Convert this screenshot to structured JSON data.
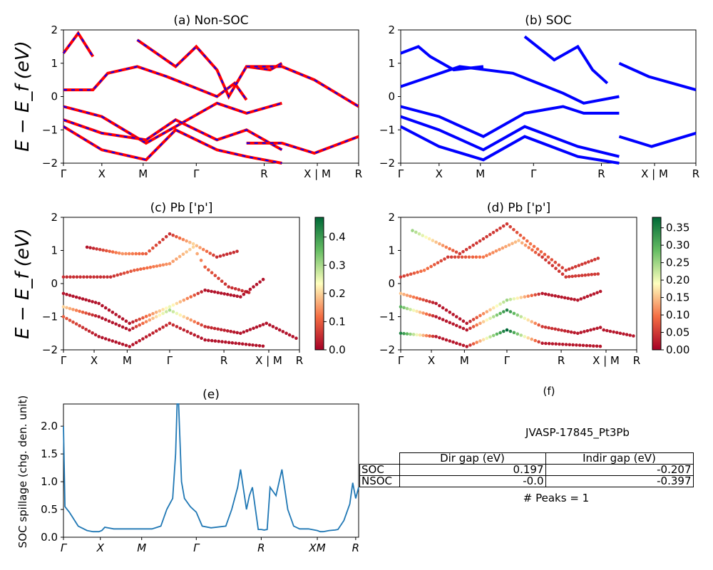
{
  "chart_data": [
    {
      "id": "a",
      "type": "line",
      "title": "(a) Non-SOC",
      "ylabel": "E − E_f (eV)",
      "ylim": [
        -2,
        2
      ],
      "yticks": [
        "2",
        "1",
        "0",
        "−1",
        "−2"
      ],
      "kpath_labels": [
        "Γ",
        "X",
        "M",
        "Γ",
        "R",
        "X | M",
        "R"
      ],
      "series": [
        {
          "color": "#ff0000",
          "dash_color": "#0000ff",
          "bands": [
            [
              [
                0,
                1.3
              ],
              [
                0.05,
                1.9
              ],
              [
                0.1,
                1.2
              ]
            ],
            [
              [
                0,
                0.2
              ],
              [
                0.1,
                0.2
              ],
              [
                0.15,
                0.7
              ],
              [
                0.25,
                0.9
              ],
              [
                0.35,
                0.6
              ],
              [
                0.45,
                0.25
              ],
              [
                0.52,
                0.0
              ],
              [
                0.58,
                0.4
              ],
              [
                0.62,
                -0.1
              ]
            ],
            [
              [
                0,
                -0.3
              ],
              [
                0.13,
                -0.6
              ],
              [
                0.28,
                -1.4
              ],
              [
                0.38,
                -0.9
              ],
              [
                0.52,
                -0.2
              ],
              [
                0.62,
                -0.5
              ],
              [
                0.74,
                -0.2
              ]
            ],
            [
              [
                0,
                -0.7
              ],
              [
                0.13,
                -1.1
              ],
              [
                0.28,
                -1.3
              ],
              [
                0.38,
                -0.7
              ],
              [
                0.52,
                -1.3
              ],
              [
                0.62,
                -1.0
              ],
              [
                0.74,
                -1.6
              ]
            ],
            [
              [
                0,
                -0.9
              ],
              [
                0.13,
                -1.6
              ],
              [
                0.28,
                -1.9
              ],
              [
                0.38,
                -1.0
              ],
              [
                0.52,
                -1.6
              ],
              [
                0.62,
                -1.8
              ],
              [
                0.74,
                -2.0
              ]
            ],
            [
              [
                0.25,
                1.7
              ],
              [
                0.38,
                0.9
              ],
              [
                0.45,
                1.5
              ],
              [
                0.52,
                0.8
              ],
              [
                0.56,
                0.0
              ],
              [
                0.62,
                0.9
              ],
              [
                0.7,
                0.8
              ],
              [
                0.74,
                1.0
              ]
            ],
            [
              [
                0.62,
                0.9
              ],
              [
                0.74,
                0.9
              ],
              [
                0.85,
                0.5
              ],
              [
                1.0,
                -0.3
              ]
            ],
            [
              [
                0.62,
                -1.4
              ],
              [
                0.74,
                -1.4
              ],
              [
                0.85,
                -1.7
              ],
              [
                1.0,
                -1.2
              ]
            ]
          ]
        }
      ]
    },
    {
      "id": "b",
      "type": "line",
      "title": "(b) SOC",
      "ylim": [
        -2,
        2
      ],
      "yticks": [
        "2",
        "1",
        "0",
        "−1",
        "−2"
      ],
      "kpath_labels": [
        "Γ",
        "X",
        "M",
        "Γ",
        "R",
        "X | M",
        "R"
      ],
      "series": [
        {
          "color": "#0000ff",
          "bands": [
            [
              [
                0,
                1.3
              ],
              [
                0.06,
                1.5
              ],
              [
                0.1,
                1.2
              ],
              [
                0.18,
                0.8
              ],
              [
                0.28,
                0.9
              ]
            ],
            [
              [
                0,
                0.3
              ],
              [
                0.1,
                0.6
              ],
              [
                0.2,
                0.9
              ],
              [
                0.38,
                0.7
              ],
              [
                0.55,
                0.1
              ],
              [
                0.62,
                -0.2
              ],
              [
                0.74,
                0.0
              ]
            ],
            [
              [
                0,
                -0.3
              ],
              [
                0.13,
                -0.6
              ],
              [
                0.28,
                -1.2
              ],
              [
                0.42,
                -0.5
              ],
              [
                0.55,
                -0.3
              ],
              [
                0.62,
                -0.5
              ],
              [
                0.74,
                -0.5
              ]
            ],
            [
              [
                0,
                -0.6
              ],
              [
                0.13,
                -1.0
              ],
              [
                0.28,
                -1.6
              ],
              [
                0.42,
                -0.9
              ],
              [
                0.6,
                -1.5
              ],
              [
                0.74,
                -1.8
              ]
            ],
            [
              [
                0,
                -0.9
              ],
              [
                0.13,
                -1.5
              ],
              [
                0.28,
                -1.9
              ],
              [
                0.42,
                -1.2
              ],
              [
                0.6,
                -1.8
              ],
              [
                0.74,
                -2.0
              ]
            ],
            [
              [
                0.42,
                1.8
              ],
              [
                0.52,
                1.1
              ],
              [
                0.6,
                1.5
              ],
              [
                0.65,
                0.8
              ],
              [
                0.7,
                0.4
              ]
            ],
            [
              [
                0.74,
                1.0
              ],
              [
                0.84,
                0.6
              ],
              [
                1.0,
                0.2
              ]
            ],
            [
              [
                0.74,
                -1.2
              ],
              [
                0.85,
                -1.5
              ],
              [
                1.0,
                -1.1
              ]
            ]
          ]
        }
      ]
    },
    {
      "id": "c",
      "type": "scatter",
      "title": "(c)  Pb ['p']",
      "ylabel": "E − E_f (eV)",
      "ylim": [
        -2,
        2
      ],
      "yticks": [
        "2",
        "1",
        "0",
        "−1",
        "−2"
      ],
      "kpath_labels": [
        "Γ",
        "X",
        "M",
        "Γ",
        "R",
        "X | M",
        "R"
      ],
      "colorbar": {
        "ticks": [
          "0.4",
          "0.3",
          "0.2",
          "0.1",
          "0.0"
        ],
        "max": 0.47,
        "colormap": "RdYlGn"
      },
      "bands": [
        [
          [
            0,
            0.2,
            0.05
          ],
          [
            0.1,
            0.2,
            0.05
          ],
          [
            0.2,
            0.2,
            0.05
          ],
          [
            0.3,
            0.4,
            0.1
          ],
          [
            0.45,
            0.6,
            0.15
          ],
          [
            0.55,
            1.1,
            0.2
          ],
          [
            0.6,
            0.5,
            0.1
          ],
          [
            0.7,
            -0.1,
            0.05
          ],
          [
            0.8,
            -0.3,
            0.05
          ]
        ],
        [
          [
            0,
            -0.3,
            0.02
          ],
          [
            0.15,
            -0.6,
            0.02
          ],
          [
            0.28,
            -1.2,
            0.02
          ],
          [
            0.45,
            -0.7,
            0.25
          ],
          [
            0.6,
            -0.2,
            0.02
          ],
          [
            0.75,
            -0.4,
            0.02
          ],
          [
            0.86,
            0.2,
            0.02
          ]
        ],
        [
          [
            0,
            -0.7,
            0.2
          ],
          [
            0.15,
            -1.0,
            0.02
          ],
          [
            0.28,
            -1.4,
            0.02
          ],
          [
            0.45,
            -0.8,
            0.3
          ],
          [
            0.6,
            -1.3,
            0.05
          ],
          [
            0.75,
            -1.5,
            0.02
          ],
          [
            0.86,
            -1.2,
            0.02
          ]
        ],
        [
          [
            0,
            -1.0,
            0.1
          ],
          [
            0.15,
            -1.6,
            0.02
          ],
          [
            0.28,
            -1.9,
            0.02
          ],
          [
            0.45,
            -1.2,
            0.05
          ],
          [
            0.6,
            -1.7,
            0.02
          ],
          [
            0.86,
            -1.9,
            0.02
          ]
        ],
        [
          [
            0.86,
            -1.2,
            0.02
          ],
          [
            1.0,
            -1.7,
            0.02
          ]
        ],
        [
          [
            0.1,
            1.1,
            0.02
          ],
          [
            0.25,
            0.9,
            0.15
          ],
          [
            0.35,
            0.9,
            0.1
          ],
          [
            0.45,
            1.5,
            0.05
          ],
          [
            0.55,
            1.2,
            0.2
          ],
          [
            0.65,
            0.8,
            0.05
          ],
          [
            0.75,
            1.0,
            0.05
          ]
        ]
      ]
    },
    {
      "id": "d",
      "type": "scatter",
      "title": "(d) Pb ['p']",
      "ylim": [
        -2,
        2
      ],
      "yticks": [
        "2",
        "1",
        "0",
        "−1",
        "−2"
      ],
      "kpath_labels": [
        "Γ",
        "X",
        "M",
        "Γ",
        "R",
        "X | M",
        "R"
      ],
      "colorbar": {
        "ticks": [
          "0.35",
          "0.30",
          "0.25",
          "0.20",
          "0.15",
          "0.10",
          "0.05",
          "0.00"
        ],
        "max": 0.38,
        "colormap": "RdYlGn"
      },
      "bands": [
        [
          [
            0,
            0.2,
            0.05
          ],
          [
            0.1,
            0.4,
            0.1
          ],
          [
            0.2,
            0.8,
            0.05
          ],
          [
            0.35,
            0.8,
            0.1
          ],
          [
            0.5,
            1.3,
            0.15
          ],
          [
            0.6,
            0.8,
            0.05
          ],
          [
            0.7,
            0.2,
            0.05
          ],
          [
            0.85,
            0.3,
            0.05
          ]
        ],
        [
          [
            0,
            -0.3,
            0.15
          ],
          [
            0.15,
            -0.6,
            0.02
          ],
          [
            0.28,
            -1.2,
            0.02
          ],
          [
            0.45,
            -0.5,
            0.25
          ],
          [
            0.6,
            -0.3,
            0.02
          ],
          [
            0.75,
            -0.5,
            0.02
          ],
          [
            0.86,
            -0.2,
            0.02
          ]
        ],
        [
          [
            0,
            -0.7,
            0.3
          ],
          [
            0.15,
            -1.0,
            0.02
          ],
          [
            0.28,
            -1.4,
            0.02
          ],
          [
            0.45,
            -0.8,
            0.35
          ],
          [
            0.6,
            -1.3,
            0.05
          ],
          [
            0.75,
            -1.5,
            0.02
          ],
          [
            0.86,
            -1.3,
            0.02
          ]
        ],
        [
          [
            0,
            -1.5,
            0.35
          ],
          [
            0.15,
            -1.6,
            0.02
          ],
          [
            0.28,
            -1.9,
            0.02
          ],
          [
            0.45,
            -1.4,
            0.38
          ],
          [
            0.6,
            -1.8,
            0.02
          ],
          [
            0.86,
            -1.9,
            0.02
          ]
        ],
        [
          [
            0.86,
            -1.4,
            0.02
          ],
          [
            1.0,
            -1.6,
            0.02
          ]
        ],
        [
          [
            0.05,
            1.6,
            0.25
          ],
          [
            0.25,
            0.9,
            0.05
          ],
          [
            0.45,
            1.8,
            0.05
          ],
          [
            0.55,
            1.2,
            0.1
          ],
          [
            0.7,
            0.4,
            0.05
          ],
          [
            0.85,
            0.8,
            0.05
          ]
        ]
      ]
    },
    {
      "id": "e",
      "type": "line",
      "title": "(e)",
      "ylabel": "SOC spillage (chg. den. unit)",
      "ylim": [
        0.0,
        2.4
      ],
      "yticks": [
        "2.0",
        "1.5",
        "1.0",
        "0.5",
        "0.0"
      ],
      "kpath_labels": [
        "Γ",
        "X",
        "M",
        "Γ",
        "R",
        "XM",
        "R"
      ],
      "series": [
        {
          "color": "#1f77b4",
          "x": [
            0,
            0.005,
            0.02,
            0.05,
            0.08,
            0.1,
            0.12,
            0.13,
            0.14,
            0.15,
            0.17,
            0.2,
            0.25,
            0.3,
            0.33,
            0.35,
            0.36,
            0.37,
            0.38,
            0.385,
            0.39,
            0.4,
            0.41,
            0.43,
            0.45,
            0.47,
            0.5,
            0.55,
            0.57,
            0.59,
            0.6,
            0.62,
            0.63,
            0.64,
            0.66,
            0.67,
            0.68,
            0.69,
            0.7,
            0.72,
            0.74,
            0.76,
            0.78,
            0.8,
            0.83,
            0.86,
            0.87,
            0.88,
            0.9,
            0.92,
            0.93,
            0.95,
            0.97,
            0.98,
            0.99,
            1.0
          ],
          "y": [
            2.0,
            0.55,
            0.45,
            0.2,
            0.12,
            0.1,
            0.1,
            0.12,
            0.18,
            0.17,
            0.15,
            0.15,
            0.15,
            0.15,
            0.2,
            0.5,
            0.6,
            0.7,
            1.5,
            2.4,
            2.4,
            1.0,
            0.7,
            0.55,
            0.45,
            0.2,
            0.17,
            0.2,
            0.5,
            0.9,
            1.22,
            0.5,
            0.75,
            0.9,
            0.14,
            0.14,
            0.13,
            0.14,
            0.9,
            0.75,
            1.22,
            0.5,
            0.2,
            0.15,
            0.15,
            0.12,
            0.1,
            0.1,
            0.12,
            0.13,
            0.14,
            0.3,
            0.6,
            0.98,
            0.7,
            0.9
          ]
        }
      ]
    }
  ],
  "panel_f": {
    "title": "(f)",
    "subtitle": "JVASP-17845_Pt3Pb",
    "columns": [
      "Dir gap (eV)",
      "Indir gap (eV)"
    ],
    "rows": [
      {
        "label": "SOC",
        "dir": "0.197",
        "indir": "-0.207"
      },
      {
        "label": "NSOC",
        "dir": "-0.0",
        "indir": "-0.397"
      }
    ],
    "peaks": "# Peaks = 1"
  }
}
